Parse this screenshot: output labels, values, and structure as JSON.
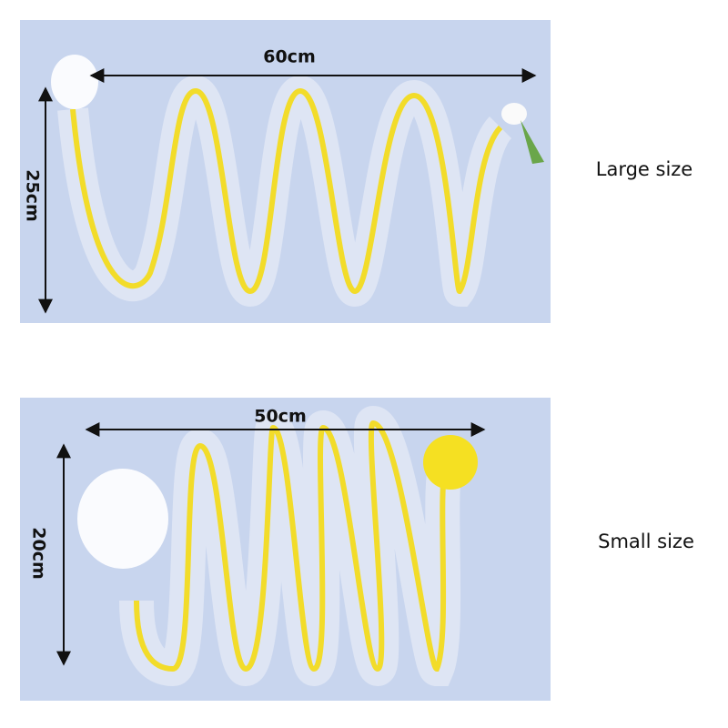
{
  "panels": [
    {
      "width_label": "60cm",
      "height_label": "25cm",
      "size_label": "Large size"
    },
    {
      "width_label": "50cm",
      "height_label": "20cm",
      "size_label": "Small size"
    }
  ]
}
